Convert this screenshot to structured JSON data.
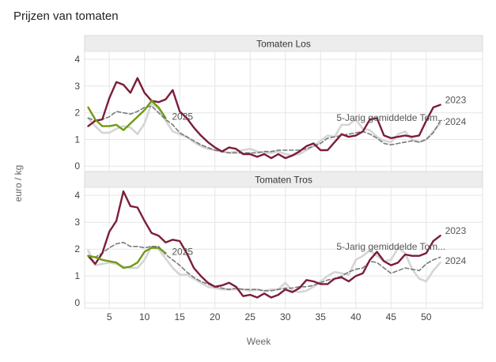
{
  "chart_data": {
    "type": "line",
    "title": "Prijzen van tomaten",
    "xlabel": "Week",
    "ylabel": "euro / kg",
    "xlim": [
      1.5,
      58
    ],
    "ylim": [
      -0.2,
      4.3
    ],
    "x_ticks": [
      5,
      10,
      15,
      20,
      25,
      30,
      35,
      40,
      45,
      50
    ],
    "y_ticks": [
      0,
      1,
      2,
      3,
      4
    ],
    "grid": true,
    "colors": {
      "2023": "#7b1d36",
      "2024": "#d5d5d5",
      "2025": "#6f9a12",
      "avg": "#7a7a7a"
    },
    "panels": [
      {
        "name": "Tomaten Los",
        "labels": {
          "avg": "5-Jarig gemiddelde Tom...",
          "y2023": "2023",
          "y2024": "2024",
          "y2025": "2025"
        },
        "series": [
          {
            "key": "2024",
            "x": [
              2,
              3,
              4,
              5,
              6,
              7,
              8,
              9,
              10,
              11,
              12,
              13,
              14,
              15,
              16,
              17,
              18,
              19,
              20,
              21,
              22,
              23,
              24,
              25,
              26,
              27,
              28,
              29,
              30,
              31,
              32,
              33,
              34,
              35,
              36,
              37,
              38,
              39,
              40,
              41,
              42,
              43,
              44,
              45,
              46,
              47,
              48,
              49,
              50,
              51,
              52
            ],
            "values": [
              1.8,
              1.5,
              1.25,
              1.25,
              1.4,
              1.5,
              1.45,
              1.2,
              1.6,
              2.35,
              2.15,
              1.7,
              1.3,
              1.2,
              1.1,
              0.9,
              0.75,
              0.65,
              0.6,
              0.55,
              0.5,
              0.55,
              0.6,
              0.65,
              0.55,
              0.5,
              0.5,
              0.55,
              0.45,
              0.4,
              0.45,
              0.6,
              0.75,
              0.95,
              1.15,
              1.1,
              1.55,
              1.55,
              1.75,
              1.4,
              1.35,
              1.1,
              0.95,
              0.9,
              1.2,
              1.3,
              1.0,
              0.9,
              1.0,
              1.3,
              1.6
            ]
          },
          {
            "key": "avg",
            "x": [
              2,
              3,
              4,
              5,
              6,
              7,
              8,
              9,
              10,
              11,
              12,
              13,
              14,
              15,
              16,
              17,
              18,
              19,
              20,
              21,
              22,
              23,
              24,
              25,
              26,
              27,
              28,
              29,
              30,
              31,
              32,
              33,
              34,
              35,
              36,
              37,
              38,
              39,
              40,
              41,
              42,
              43,
              44,
              45,
              46,
              47,
              48,
              49,
              50,
              51,
              52
            ],
            "values": [
              1.8,
              1.7,
              1.75,
              1.85,
              2.05,
              2.0,
              1.95,
              2.05,
              2.2,
              2.25,
              2.0,
              1.75,
              1.55,
              1.25,
              1.1,
              0.95,
              0.8,
              0.7,
              0.6,
              0.55,
              0.5,
              0.5,
              0.5,
              0.5,
              0.5,
              0.55,
              0.55,
              0.6,
              0.6,
              0.6,
              0.6,
              0.65,
              0.75,
              0.85,
              1.05,
              1.1,
              1.15,
              1.2,
              1.25,
              1.3,
              1.2,
              1.05,
              0.85,
              0.8,
              0.85,
              0.9,
              0.95,
              0.9,
              1.0,
              1.25,
              1.7
            ]
          },
          {
            "key": "2023",
            "x": [
              2,
              3,
              4,
              5,
              6,
              7,
              8,
              9,
              10,
              11,
              12,
              13,
              14,
              15,
              16,
              17,
              18,
              19,
              20,
              21,
              22,
              23,
              24,
              25,
              26,
              27,
              28,
              29,
              30,
              31,
              32,
              33,
              34,
              35,
              36,
              37,
              38,
              39,
              40,
              41,
              42,
              43,
              44,
              45,
              46,
              47,
              48,
              49,
              50,
              51,
              52
            ],
            "values": [
              1.5,
              1.7,
              1.75,
              2.55,
              3.15,
              3.05,
              2.75,
              3.3,
              2.75,
              2.45,
              2.4,
              2.5,
              2.85,
              2.05,
              1.8,
              1.45,
              1.15,
              0.9,
              0.7,
              0.55,
              0.7,
              0.65,
              0.45,
              0.45,
              0.35,
              0.45,
              0.3,
              0.45,
              0.3,
              0.4,
              0.55,
              0.75,
              0.85,
              0.6,
              0.6,
              0.9,
              1.2,
              1.1,
              1.15,
              1.3,
              1.75,
              1.8,
              1.15,
              1.05,
              1.1,
              1.15,
              1.1,
              1.15,
              1.7,
              2.2,
              2.3
            ]
          },
          {
            "key": "2025",
            "x": [
              2,
              3,
              4,
              5,
              6,
              7,
              8,
              9,
              10,
              11,
              12,
              13
            ],
            "values": [
              2.2,
              1.75,
              1.5,
              1.5,
              1.55,
              1.35,
              1.6,
              1.85,
              2.1,
              2.45,
              2.2,
              1.8
            ]
          }
        ]
      },
      {
        "name": "Tomaten Tros",
        "labels": {
          "avg": "5-Jarig gemiddelde Tom...",
          "y2023": "2023",
          "y2024": "2024",
          "y2025": "2025"
        },
        "series": [
          {
            "key": "2024",
            "x": [
              2,
              3,
              4,
              5,
              6,
              7,
              8,
              9,
              10,
              11,
              12,
              13,
              14,
              15,
              16,
              17,
              18,
              19,
              20,
              21,
              22,
              23,
              24,
              25,
              26,
              27,
              28,
              29,
              30,
              31,
              32,
              33,
              34,
              35,
              36,
              37,
              38,
              39,
              40,
              41,
              42,
              43,
              44,
              45,
              46,
              47,
              48,
              49,
              50,
              51,
              52
            ],
            "values": [
              1.95,
              1.4,
              1.45,
              1.5,
              1.45,
              1.35,
              1.3,
              1.3,
              1.6,
              2.1,
              2.0,
              1.65,
              1.3,
              1.05,
              1.05,
              0.9,
              0.75,
              0.6,
              0.55,
              0.5,
              0.5,
              0.5,
              0.5,
              0.45,
              0.5,
              0.45,
              0.5,
              0.5,
              0.75,
              0.45,
              0.4,
              0.45,
              0.6,
              0.8,
              1.0,
              1.15,
              1.1,
              1.05,
              1.6,
              1.75,
              1.95,
              1.75,
              1.55,
              1.6,
              2.05,
              1.85,
              1.25,
              0.9,
              0.8,
              1.2,
              1.5
            ]
          },
          {
            "key": "avg",
            "x": [
              2,
              3,
              4,
              5,
              6,
              7,
              8,
              9,
              10,
              11,
              12,
              13,
              14,
              15,
              16,
              17,
              18,
              19,
              20,
              21,
              22,
              23,
              24,
              25,
              26,
              27,
              28,
              29,
              30,
              31,
              32,
              33,
              34,
              35,
              36,
              37,
              38,
              39,
              40,
              41,
              42,
              43,
              44,
              45,
              46,
              47,
              48,
              49,
              50,
              51,
              52
            ],
            "values": [
              1.75,
              1.7,
              1.85,
              2.05,
              2.2,
              2.25,
              2.1,
              2.1,
              2.05,
              2.1,
              2.1,
              1.8,
              1.6,
              1.4,
              1.15,
              0.95,
              0.8,
              0.7,
              0.6,
              0.55,
              0.5,
              0.55,
              0.5,
              0.5,
              0.5,
              0.45,
              0.45,
              0.5,
              0.55,
              0.55,
              0.6,
              0.6,
              0.65,
              0.75,
              0.85,
              0.9,
              1.0,
              1.15,
              1.25,
              1.3,
              1.55,
              1.5,
              1.3,
              1.1,
              1.2,
              1.3,
              1.25,
              1.2,
              1.45,
              1.6,
              1.7
            ]
          },
          {
            "key": "2023",
            "x": [
              2,
              3,
              4,
              5,
              6,
              7,
              8,
              9,
              10,
              11,
              12,
              13,
              14,
              15,
              16,
              17,
              18,
              19,
              20,
              21,
              22,
              23,
              24,
              25,
              26,
              27,
              28,
              29,
              30,
              31,
              32,
              33,
              34,
              35,
              36,
              37,
              38,
              39,
              40,
              41,
              42,
              43,
              44,
              45,
              46,
              47,
              48,
              49,
              50,
              51,
              52
            ],
            "values": [
              1.75,
              1.45,
              1.85,
              2.65,
              3.05,
              4.15,
              3.6,
              3.55,
              3.05,
              2.6,
              2.5,
              2.25,
              2.35,
              2.3,
              1.85,
              1.3,
              1.0,
              0.75,
              0.6,
              0.65,
              0.75,
              0.6,
              0.25,
              0.3,
              0.2,
              0.35,
              0.2,
              0.3,
              0.5,
              0.4,
              0.55,
              0.85,
              0.8,
              0.7,
              0.7,
              0.9,
              0.95,
              0.8,
              1.0,
              1.1,
              1.6,
              1.9,
              1.55,
              1.4,
              1.5,
              1.8,
              1.75,
              1.75,
              1.85,
              2.3,
              2.5
            ]
          },
          {
            "key": "2025",
            "x": [
              2,
              3,
              4,
              5,
              6,
              7,
              8,
              9,
              10,
              11,
              12,
              13
            ],
            "values": [
              1.75,
              1.7,
              1.6,
              1.55,
              1.5,
              1.3,
              1.35,
              1.5,
              1.9,
              2.05,
              2.05,
              1.85
            ]
          }
        ]
      }
    ]
  }
}
